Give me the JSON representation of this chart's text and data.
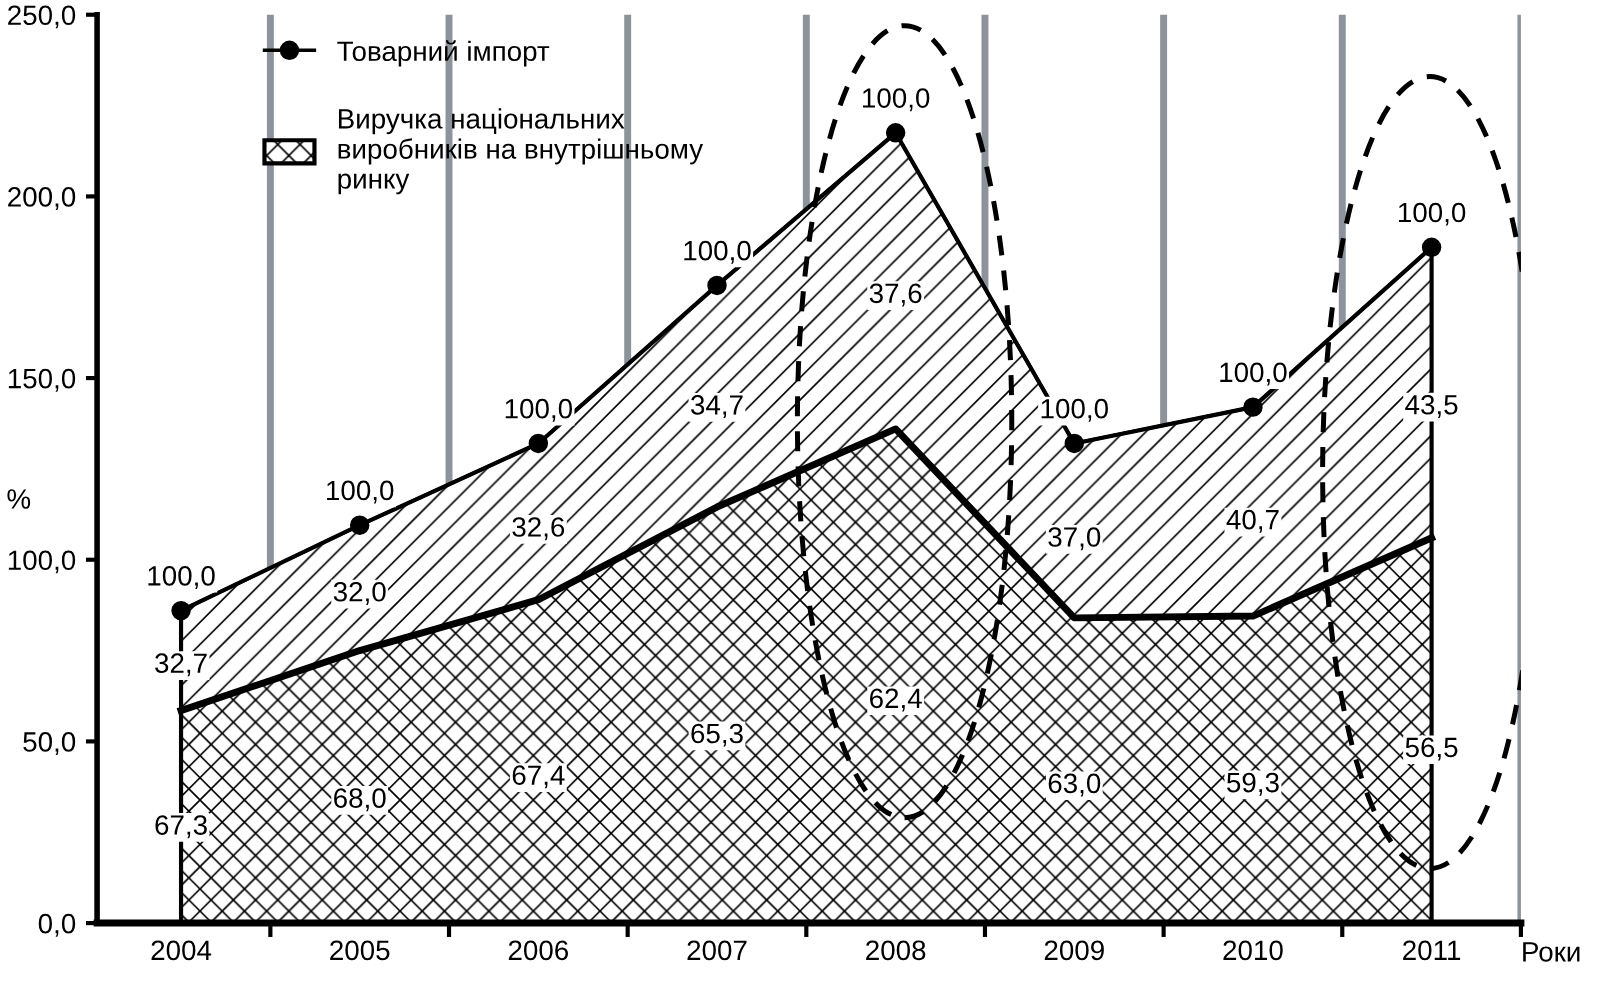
{
  "chart_data": {
    "type": "area",
    "stacked": true,
    "categories": [
      "2004",
      "2005",
      "2006",
      "2007",
      "2008",
      "2009",
      "2010",
      "2011"
    ],
    "xlabel": "Роки",
    "ylabel": "%",
    "series": [
      {
        "name": "Виручка національних\nвиробників на внутрішньому\nринку",
        "color": "#000000",
        "marker": "none",
        "values": [
          58.5,
          75,
          89,
          114.5,
          136,
          84,
          84.5,
          106
        ]
      },
      {
        "name": "Товарний імпорт",
        "color": "#000000",
        "marker": "circle",
        "values": [
          27.5,
          34.5,
          43,
          61,
          81.5,
          48,
          57.5,
          80
        ]
      }
    ],
    "ylim": [
      0,
      250
    ],
    "yticks": [
      {
        "value": 0,
        "label": "0,0"
      },
      {
        "value": 50,
        "label": "50,0"
      },
      {
        "value": 100,
        "label": "100,0"
      },
      {
        "value": 150,
        "label": "150,0"
      },
      {
        "value": 200,
        "label": "200,0"
      },
      {
        "value": 250,
        "label": "250,0"
      }
    ],
    "grid": "x",
    "legend": "top left",
    "annotations": [
      "67,3",
      "68,0",
      "67,4",
      "65,3",
      "62,4",
      "63,0",
      "59,3",
      "56,5",
      "32,7",
      "32,0",
      "32,6",
      "34,7",
      "37,6",
      "37,0",
      "40,7",
      "43,5",
      "100,0",
      "100,0",
      "100,0",
      "100,0",
      "100,0",
      "100,0",
      "100,0",
      "100,0"
    ]
  }
}
